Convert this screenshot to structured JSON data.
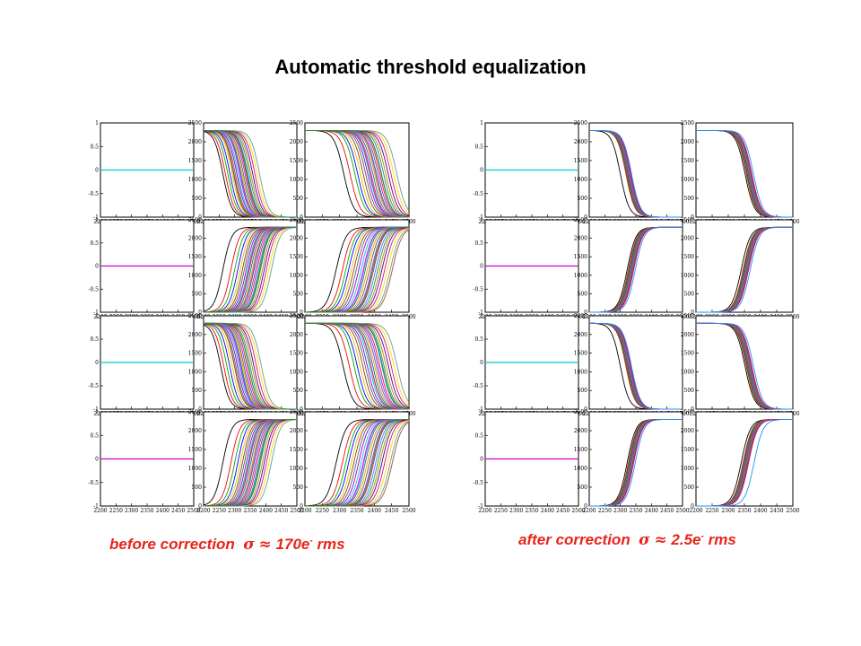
{
  "title": "Automatic threshold equalization",
  "captions": {
    "before": {
      "text": "before correction",
      "sigma": "σ",
      "approx": "≈",
      "value": "170e",
      "sup": "-",
      "unit": "rms"
    },
    "after": {
      "text": "after correction",
      "sigma": "σ",
      "approx": "≈",
      "value": "2.5e",
      "sup": "-",
      "unit": "rms"
    }
  },
  "colors": {
    "caption": "#e8241a",
    "frame": "#000000"
  },
  "chart_data": [
    {
      "type": "line",
      "title": "before correction",
      "panel_grid": {
        "rows": 4,
        "cols": 3
      },
      "flat_panel": {
        "xlim": [
          2200,
          2500
        ],
        "ylim": [
          -1,
          1
        ],
        "xticks": [
          "2200",
          "2250",
          "2300",
          "2350",
          "2400",
          "2450",
          "2500"
        ],
        "yticks": [
          "1",
          "0.5",
          "0",
          "-0.5",
          "-1"
        ],
        "value": 0,
        "row_colors": [
          "#00c8c8",
          "#d000d0",
          "#00c8c8",
          "#d000d0"
        ]
      },
      "scurve_panels": {
        "xlim": [
          2200,
          2500
        ],
        "ylim": [
          0,
          2500
        ],
        "xticks": [
          "2200",
          "2250",
          "2300",
          "2350",
          "2400",
          "2450",
          "2500"
        ],
        "yticks": [
          "2500",
          "2000",
          "1500",
          "1000",
          "500",
          "0"
        ],
        "plateau": 2300,
        "width": 14,
        "rows": [
          {
            "direction": "falling",
            "col2_thresholds": [
              2262,
              2270,
              2278,
              2285,
              2292,
              2298,
              2302,
              2307,
              2311,
              2316,
              2320,
              2324,
              2328,
              2333,
              2337,
              2342,
              2347,
              2352,
              2358,
              2365,
              2372,
              2380,
              2296,
              2318,
              2340
            ],
            "col3_thresholds": [
              2312,
              2330,
              2344,
              2352,
              2360,
              2368,
              2375,
              2381,
              2386,
              2391,
              2396,
              2401,
              2406,
              2411,
              2416,
              2421,
              2427,
              2433,
              2440,
              2448,
              2456,
              2465,
              2388,
              2404,
              2420
            ]
          },
          {
            "direction": "rising",
            "col2_thresholds": [
              2262,
              2288,
              2300,
              2310,
              2318,
              2325,
              2331,
              2337,
              2342,
              2347,
              2352,
              2357,
              2362,
              2367,
              2372,
              2377,
              2383,
              2389,
              2395,
              2402,
              2410,
              2418,
              2345,
              2360,
              2380
            ],
            "col3_thresholds": [
              2290,
              2308,
              2318,
              2326,
              2334,
              2341,
              2348,
              2355,
              2362,
              2368,
              2374,
              2380,
              2386,
              2392,
              2398,
              2404,
              2410,
              2416,
              2422,
              2430,
              2438,
              2446,
              2452,
              2370,
              2395
            ]
          },
          {
            "direction": "falling",
            "col2_thresholds": [
              2255,
              2265,
              2275,
              2284,
              2292,
              2299,
              2304,
              2309,
              2314,
              2318,
              2322,
              2326,
              2330,
              2335,
              2340,
              2345,
              2350,
              2356,
              2362,
              2370,
              2378,
              2386,
              2300,
              2320,
              2345
            ],
            "col3_thresholds": [
              2310,
              2328,
              2342,
              2351,
              2359,
              2367,
              2374,
              2380,
              2386,
              2391,
              2396,
              2401,
              2406,
              2411,
              2416,
              2422,
              2428,
              2434,
              2441,
              2449,
              2457,
              2466,
              2390,
              2406,
              2424
            ]
          },
          {
            "direction": "rising",
            "col2_thresholds": [
              2262,
              2288,
              2300,
              2310,
              2318,
              2325,
              2331,
              2337,
              2342,
              2347,
              2352,
              2357,
              2362,
              2367,
              2372,
              2377,
              2383,
              2389,
              2395,
              2402,
              2410,
              2418,
              2345,
              2360,
              2380
            ],
            "col3_thresholds": [
              2290,
              2308,
              2318,
              2326,
              2334,
              2341,
              2348,
              2355,
              2362,
              2368,
              2374,
              2380,
              2386,
              2392,
              2398,
              2404,
              2410,
              2416,
              2422,
              2430,
              2438,
              2446,
              2452,
              2370,
              2395
            ]
          }
        ]
      }
    },
    {
      "type": "line",
      "title": "after correction",
      "panel_grid": {
        "rows": 4,
        "cols": 3
      },
      "flat_panel": {
        "xlim": [
          2200,
          2500
        ],
        "ylim": [
          -1,
          1
        ],
        "xticks": [
          "2200",
          "2250",
          "2300",
          "2350",
          "2400",
          "2450",
          "2500"
        ],
        "yticks": [
          "1",
          "0.5",
          "0",
          "-0.5",
          "-1"
        ],
        "value": 0,
        "row_colors": [
          "#00c8c8",
          "#d000d0",
          "#00c8c8",
          "#d000d0"
        ]
      },
      "scurve_panels": {
        "xlim": [
          2200,
          2500
        ],
        "ylim": [
          0,
          2500
        ],
        "xticks": [
          "2200",
          "2250",
          "2300",
          "2350",
          "2400",
          "2450",
          "2500"
        ],
        "yticks": [
          "2500",
          "2000",
          "1500",
          "1000",
          "500",
          "0"
        ],
        "plateau": 2300,
        "width": 14,
        "rows": [
          {
            "direction": "falling",
            "col2_thresholds": [
              2300,
              2318,
              2320,
              2322,
              2323,
              2324,
              2325,
              2326,
              2327,
              2328,
              2329,
              2330,
              2331,
              2332,
              2334,
              2336
            ],
            "col3_thresholds": [
              2352,
              2356,
              2358,
              2360,
              2361,
              2362,
              2363,
              2364,
              2365,
              2366,
              2367,
              2368,
              2369,
              2371,
              2373,
              2378
            ]
          },
          {
            "direction": "rising",
            "col2_thresholds": [
              2322,
              2326,
              2328,
              2330,
              2331,
              2332,
              2333,
              2334,
              2335,
              2336,
              2337,
              2338,
              2339,
              2341,
              2343,
              2348
            ],
            "col3_thresholds": [
              2340,
              2346,
              2348,
              2350,
              2351,
              2352,
              2353,
              2354,
              2355,
              2356,
              2357,
              2358,
              2359,
              2361,
              2363,
              2368
            ]
          },
          {
            "direction": "falling",
            "col2_thresholds": [
              2300,
              2318,
              2320,
              2322,
              2323,
              2324,
              2325,
              2326,
              2327,
              2328,
              2329,
              2330,
              2331,
              2332,
              2334,
              2336
            ],
            "col3_thresholds": [
              2352,
              2356,
              2358,
              2360,
              2361,
              2362,
              2363,
              2364,
              2365,
              2366,
              2367,
              2368,
              2369,
              2371,
              2373,
              2378
            ]
          },
          {
            "direction": "rising",
            "col2_thresholds": [
              2322,
              2326,
              2328,
              2330,
              2331,
              2332,
              2333,
              2334,
              2335,
              2336,
              2337,
              2338,
              2339,
              2341,
              2343,
              2348
            ],
            "col3_thresholds": [
              2340,
              2346,
              2348,
              2350,
              2351,
              2352,
              2353,
              2354,
              2355,
              2356,
              2357,
              2358,
              2359,
              2361,
              2363,
              2380
            ]
          }
        ]
      }
    }
  ]
}
